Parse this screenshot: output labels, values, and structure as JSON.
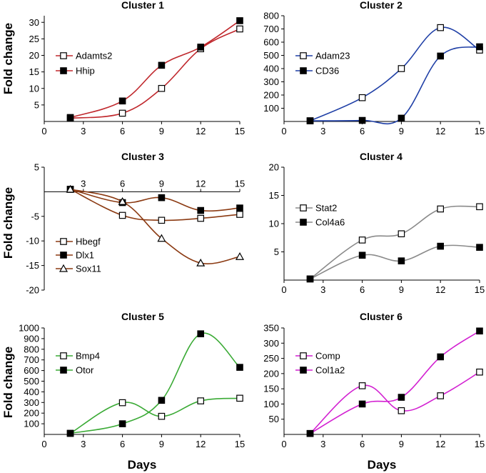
{
  "figure": {
    "ylabel_top": "Fold change",
    "ylabel_middle": "Fold change",
    "ylabel_bottom": "Fold change",
    "xlabel_left": "Days",
    "xlabel_right": "Days"
  },
  "chart_data": [
    {
      "type": "line",
      "title": "Cluster 1",
      "x_ticks": [
        "0",
        "3",
        "6",
        "9",
        "12",
        "15"
      ],
      "y_ticks": [
        "5",
        "10",
        "15",
        "20",
        "25",
        "30"
      ],
      "xlim": [
        0,
        15
      ],
      "ylim": [
        0,
        32
      ],
      "legend": "upper-left",
      "series": [
        {
          "name": "Adamts2",
          "color": "#c0282d",
          "marker": "open-square",
          "x": [
            2,
            6,
            9,
            12,
            15
          ],
          "values": [
            1,
            2.5,
            10,
            22,
            28
          ]
        },
        {
          "name": "Hhip",
          "color": "#c0282d",
          "marker": "filled-square",
          "x": [
            2,
            6,
            9,
            12,
            15
          ],
          "values": [
            1.2,
            6.2,
            17,
            22.5,
            30.5
          ]
        }
      ]
    },
    {
      "type": "line",
      "title": "Cluster 2",
      "x_ticks": [
        "0",
        "3",
        "6",
        "9",
        "12",
        "15"
      ],
      "y_ticks": [
        "100",
        "200",
        "300",
        "400",
        "500",
        "600",
        "700",
        "800"
      ],
      "xlim": [
        0,
        15
      ],
      "ylim": [
        0,
        800
      ],
      "legend": "upper-left",
      "series": [
        {
          "name": "Adam23",
          "color": "#1f3fa6",
          "marker": "open-square",
          "x": [
            2,
            6,
            9,
            12,
            15
          ],
          "values": [
            5,
            180,
            400,
            710,
            540
          ]
        },
        {
          "name": "CD36",
          "color": "#1f3fa6",
          "marker": "filled-square",
          "x": [
            2,
            6,
            9,
            12,
            15
          ],
          "values": [
            5,
            8,
            25,
            495,
            565
          ]
        }
      ]
    },
    {
      "type": "line",
      "title": "Cluster 3",
      "x_ticks": [
        "3",
        "6",
        "9",
        "12",
        "15"
      ],
      "y_ticks": [
        "5",
        "-5",
        "-10",
        "-15",
        "-20"
      ],
      "xlim": [
        0,
        15
      ],
      "ylim": [
        -20,
        5
      ],
      "legend": "lower-left",
      "series": [
        {
          "name": "Hbegf",
          "color": "#8b3a12",
          "marker": "open-square",
          "x": [
            2,
            6,
            9,
            12,
            15
          ],
          "values": [
            0.5,
            -4.8,
            -5.8,
            -5.4,
            -4.6
          ]
        },
        {
          "name": "Dlx1",
          "color": "#8b3a12",
          "marker": "filled-square",
          "x": [
            2,
            6,
            9,
            12,
            15
          ],
          "values": [
            0.5,
            -2.2,
            -1.2,
            -3.8,
            -3.3
          ]
        },
        {
          "name": "Sox11",
          "color": "#8b3a12",
          "marker": "open-triangle",
          "x": [
            2,
            6,
            9,
            12,
            15
          ],
          "values": [
            0.5,
            -2.0,
            -9.5,
            -14.5,
            -13.2
          ]
        }
      ]
    },
    {
      "type": "line",
      "title": "Cluster 4",
      "x_ticks": [
        "0",
        "3",
        "6",
        "9",
        "12",
        "15"
      ],
      "y_ticks": [
        "5",
        "10",
        "15",
        "20"
      ],
      "xlim": [
        0,
        15
      ],
      "ylim": [
        0,
        20
      ],
      "legend": "upper-left",
      "series": [
        {
          "name": "Stat2",
          "color": "#8a8a8a",
          "marker": "open-square",
          "x": [
            2,
            6,
            9,
            12,
            15
          ],
          "values": [
            0.2,
            7.1,
            8.2,
            12.6,
            13.0
          ]
        },
        {
          "name": "Col4a6",
          "color": "#8a8a8a",
          "marker": "filled-square",
          "x": [
            2,
            6,
            9,
            12,
            15
          ],
          "values": [
            0.2,
            4.4,
            3.4,
            6.0,
            5.8
          ]
        }
      ]
    },
    {
      "type": "line",
      "title": "Cluster 5",
      "x_ticks": [
        "0",
        "3",
        "6",
        "9",
        "12",
        "15"
      ],
      "y_ticks": [
        "100",
        "200",
        "300",
        "400",
        "500",
        "600",
        "700",
        "800",
        "900",
        "1000"
      ],
      "xlim": [
        0,
        15
      ],
      "ylim": [
        0,
        1000
      ],
      "legend": "upper-left",
      "series": [
        {
          "name": "Bmp4",
          "color": "#3aaa35",
          "marker": "open-square",
          "x": [
            2,
            6,
            9,
            12,
            15
          ],
          "values": [
            10,
            298,
            170,
            315,
            340
          ]
        },
        {
          "name": "Otor",
          "color": "#3aaa35",
          "marker": "filled-square",
          "x": [
            2,
            6,
            9,
            12,
            15
          ],
          "values": [
            10,
            100,
            320,
            945,
            630
          ]
        }
      ]
    },
    {
      "type": "line",
      "title": "Cluster 6",
      "x_ticks": [
        "0",
        "3",
        "6",
        "9",
        "12",
        "15"
      ],
      "y_ticks": [
        "50",
        "100",
        "150",
        "200",
        "250",
        "300",
        "350"
      ],
      "xlim": [
        0,
        15
      ],
      "ylim": [
        0,
        350
      ],
      "legend": "upper-left",
      "series": [
        {
          "name": "Comp",
          "color": "#d21fd1",
          "marker": "open-square",
          "x": [
            2,
            6,
            9,
            12,
            15
          ],
          "values": [
            3,
            160,
            78,
            127,
            205
          ]
        },
        {
          "name": "Col1a2",
          "color": "#d21fd1",
          "marker": "filled-square",
          "x": [
            2,
            6,
            9,
            12,
            15
          ],
          "values": [
            3,
            100,
            122,
            255,
            340
          ]
        }
      ]
    }
  ]
}
